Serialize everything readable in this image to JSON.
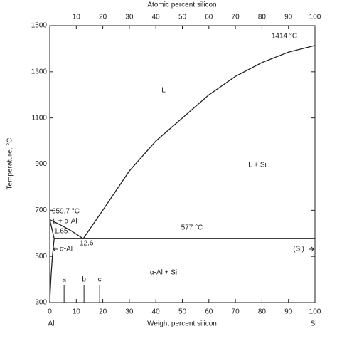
{
  "chart_data": {
    "type": "line",
    "x_label": "Weight percent silicon",
    "x2_label": "Atomic percent silicon",
    "y_label": "Temperature, °C",
    "xlim": [
      0,
      100
    ],
    "xticks": [
      0,
      10,
      20,
      30,
      40,
      50,
      60,
      70,
      80,
      90,
      100
    ],
    "x2lim": [
      0,
      100
    ],
    "x2ticks": [
      10,
      20,
      30,
      40,
      50,
      60,
      70,
      80,
      90,
      100
    ],
    "ylim": [
      300,
      1500
    ],
    "yticks": [
      300,
      500,
      700,
      900,
      1100,
      1300,
      1500
    ],
    "series": [
      {
        "color": "#222222",
        "x": [
          12.6,
          20,
          30,
          40,
          50,
          60,
          70,
          80,
          90,
          100
        ],
        "values": [
          577,
          700,
          870,
          1000,
          1100,
          1200,
          1280,
          1340,
          1385,
          1414
        ]
      },
      {
        "color": "#222222",
        "x": [
          0,
          4,
          8,
          12.6
        ],
        "values": [
          659.7,
          637,
          612,
          577
        ]
      },
      {
        "color": "#222222",
        "x": [
          0,
          0.6,
          1.2,
          1.65
        ],
        "values": [
          659.7,
          630,
          600,
          577
        ]
      },
      {
        "color": "#222222",
        "x": [
          1.65,
          1,
          0.5,
          0.2,
          0
        ],
        "values": [
          577,
          500,
          420,
          350,
          300
        ]
      },
      {
        "color": "#222222",
        "x": [
          1.65,
          100
        ],
        "values": [
          577,
          577
        ]
      }
    ],
    "markers": [
      {
        "label": "a",
        "x": 5.4
      },
      {
        "label": "b",
        "x": 12.9
      },
      {
        "label": "c",
        "x": 18.8
      }
    ],
    "end_labels": [
      "Al",
      "Si"
    ],
    "annotations": [
      "1414 °C",
      "L",
      "L + Si",
      "659.7 °C",
      "L + α-Al",
      "1.65",
      "12.6",
      "577 °C",
      "α-Al",
      "(Si)",
      "α-Al + Si"
    ]
  }
}
